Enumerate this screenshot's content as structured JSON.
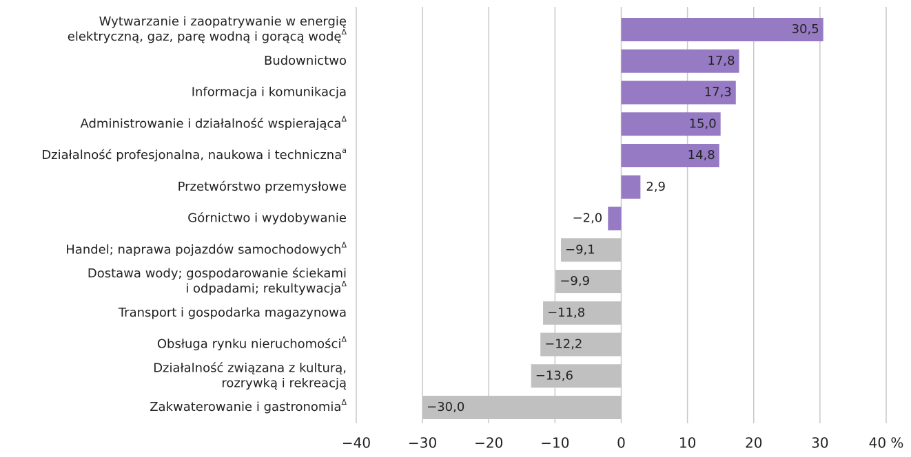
{
  "chart_data": {
    "type": "barh",
    "categories": [
      [
        "Wytwarzanie i zaopatrywanie w energię",
        "elektryczną, gaz, parę wodną i gorącą wodę"
      ],
      [
        "Budownictwo"
      ],
      [
        "Informacja i komunikacja"
      ],
      [
        "Administrowanie i działalność wspierająca"
      ],
      [
        "Działalność profesjonalna, naukowa i techniczna"
      ],
      [
        "Przetwórstwo przemysłowe"
      ],
      [
        "Górnictwo i wydobywanie"
      ],
      [
        "Handel; naprawa pojazdów samochodowych"
      ],
      [
        "Dostawa wody; gospodarowanie ściekami",
        "i odpadami; rekultywacja"
      ],
      [
        "Transport i gospodarka magazynowa"
      ],
      [
        "Obsługa rynku nieruchomości"
      ],
      [
        "Działalność związana z kulturą,",
        "rozrywką i rekreacją"
      ],
      [
        "Zakwaterowanie i gastronomia"
      ]
    ],
    "category_notes": [
      "Δ",
      null,
      null,
      "Δ",
      "a",
      null,
      null,
      "Δ",
      "Δ",
      null,
      "Δ",
      null,
      "Δ"
    ],
    "values": [
      30.5,
      17.8,
      17.3,
      15.0,
      14.8,
      2.9,
      -2.0,
      -9.1,
      -9.9,
      -11.8,
      -12.2,
      -13.6,
      -30.0
    ],
    "value_labels": [
      "30,5",
      "17,8",
      "17,3",
      "15,0",
      "14,8",
      "2,9",
      "−2,0",
      "−9,1",
      "−9,9",
      "−11,8",
      "−12,2",
      "−13,6",
      "−30,0"
    ],
    "colors": [
      "#967bc4",
      "#967bc4",
      "#967bc4",
      "#967bc4",
      "#967bc4",
      "#967bc4",
      "#967bc4",
      "#c0c0c0",
      "#c0c0c0",
      "#c0c0c0",
      "#c0c0c0",
      "#c0c0c0",
      "#c0c0c0"
    ],
    "xlim": [
      -40,
      40
    ],
    "xticks": [
      {
        "value": -40,
        "label": "−40"
      },
      {
        "value": -30,
        "label": "−30"
      },
      {
        "value": -20,
        "label": "−20"
      },
      {
        "value": -10,
        "label": "−10"
      },
      0,
      10,
      20,
      30,
      {
        "value": 40,
        "label": "40 %"
      }
    ],
    "grid": true
  }
}
